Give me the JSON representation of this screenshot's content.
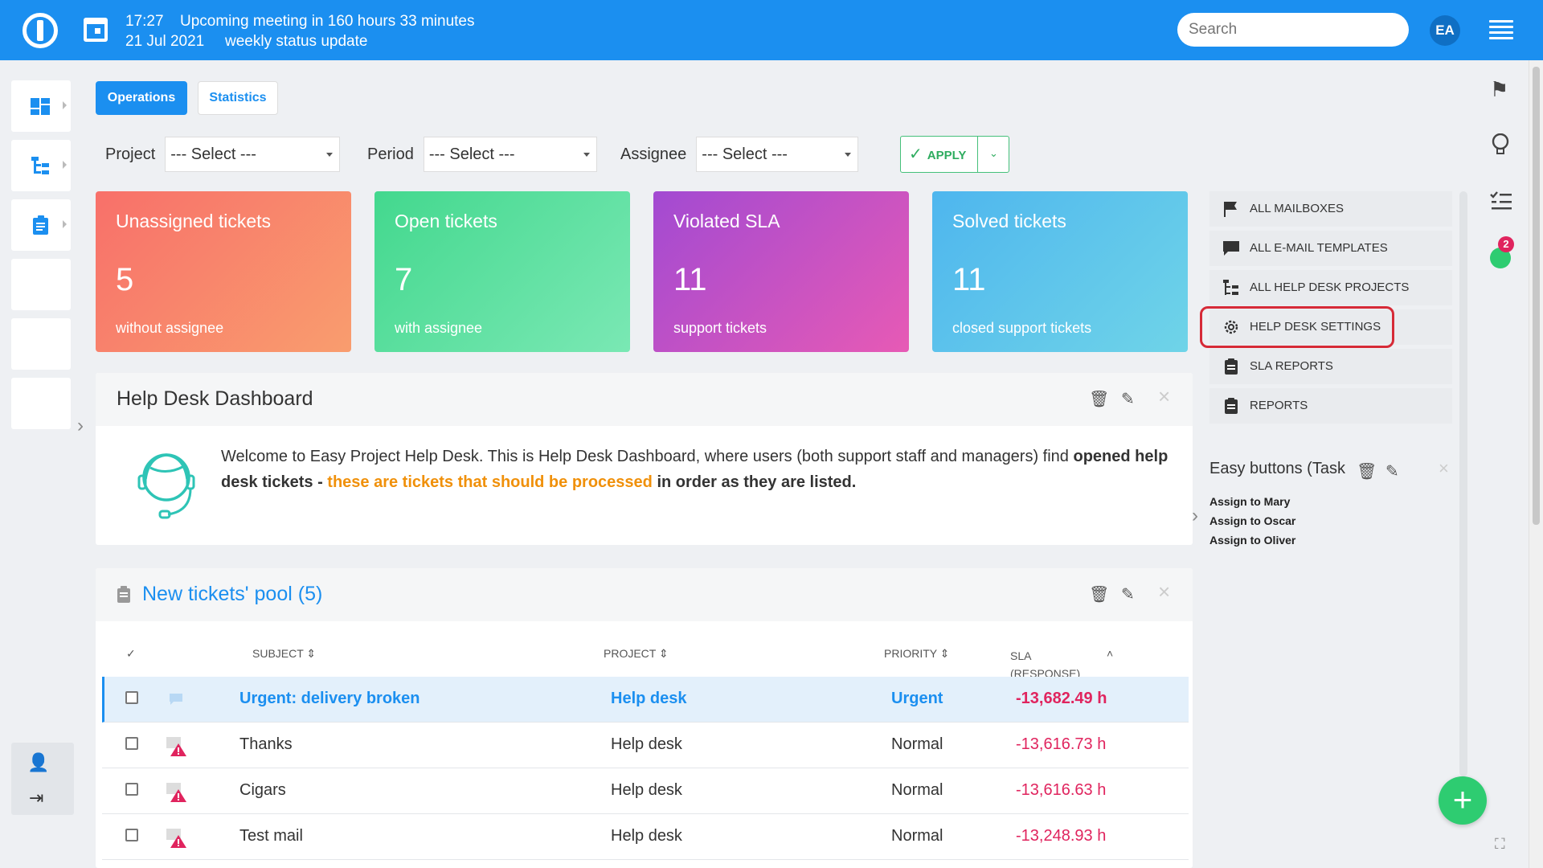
{
  "topbar": {
    "time": "17:27",
    "meeting": "Upcoming meeting in 160 hours 33 minutes",
    "date": "21 Jul 2021",
    "meeting_title": "weekly status update",
    "search_placeholder": "Search",
    "avatar": "EA",
    "bg_color": "#1b8ff0"
  },
  "tabs": [
    {
      "label": "Operations",
      "active": true
    },
    {
      "label": "Statistics",
      "active": false
    }
  ],
  "filters": {
    "project_label": "Project",
    "project_value": "--- Select ---",
    "period_label": "Period",
    "period_value": "--- Select ---",
    "assignee_label": "Assignee",
    "assignee_value": "--- Select ---",
    "apply_label": "APPLY"
  },
  "cards": [
    {
      "title": "Unassigned tickets",
      "value": "5",
      "sub": "without assignee"
    },
    {
      "title": "Open tickets",
      "value": "7",
      "sub": "with assignee"
    },
    {
      "title": "Violated SLA",
      "value": "11",
      "sub": "support tickets"
    },
    {
      "title": "Solved tickets",
      "value": "11",
      "sub": "closed support tickets"
    }
  ],
  "dashboard": {
    "title": "Help Desk Dashboard",
    "text_1": "Welcome to Easy Project Help Desk. This is Help Desk Dashboard, where users (both support staff and managers) find ",
    "text_bold_1": "opened help desk tickets - ",
    "text_highlight": "these are tickets that should be processed",
    "text_bold_2": " in order as they are listed."
  },
  "pool": {
    "title": "New tickets' pool (5)",
    "columns": {
      "subject": "SUBJECT",
      "project": "PROJECT",
      "priority": "PRIORITY",
      "sla_1": "SLA",
      "sla_2": "(RESPONSE)"
    },
    "rows": [
      {
        "subject": "Urgent: delivery broken",
        "project": "Help desk",
        "priority": "Urgent",
        "sla": "-13,682.49 h",
        "selected": true
      },
      {
        "subject": "Thanks",
        "project": "Help desk",
        "priority": "Normal",
        "sla": "-13,616.73 h",
        "selected": false
      },
      {
        "subject": "Cigars",
        "project": "Help desk",
        "priority": "Normal",
        "sla": "-13,616.63 h",
        "selected": false
      },
      {
        "subject": "Test mail",
        "project": "Help desk",
        "priority": "Normal",
        "sla": "-13,248.93 h",
        "selected": false
      }
    ]
  },
  "side_menu": [
    {
      "label": "ALL MAILBOXES",
      "icon": "flag-icon"
    },
    {
      "label": "ALL E-MAIL TEMPLATES",
      "icon": "comment-icon"
    },
    {
      "label": "ALL HELP DESK PROJECTS",
      "icon": "tree-icon"
    },
    {
      "label": "HELP DESK SETTINGS",
      "icon": "gear-icon"
    },
    {
      "label": "SLA REPORTS",
      "icon": "clipboard-icon"
    },
    {
      "label": "REPORTS",
      "icon": "clipboard-icon"
    }
  ],
  "easy_buttons": {
    "title": "Easy buttons (Task",
    "links": [
      "Assign to Mary",
      "Assign to Oscar",
      "Assign to Oliver"
    ]
  },
  "right_rail": {
    "badge": "2"
  },
  "colors": {
    "accent": "#1b8ff0",
    "sla_red": "#e0245e",
    "green": "#2ecc71",
    "orange": "#f0900a",
    "highlight_ring": "#d62a37"
  }
}
